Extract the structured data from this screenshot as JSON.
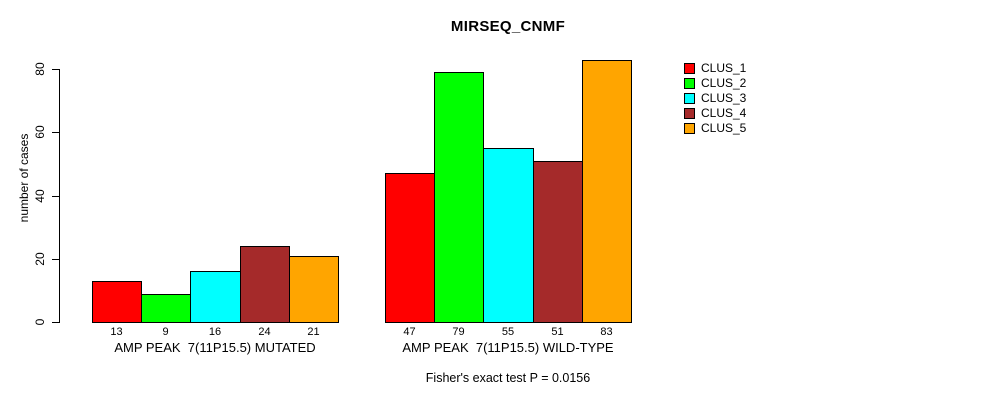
{
  "chart_data": {
    "type": "bar",
    "title": "MIRSEQ_CNMF",
    "ylabel": "number of cases",
    "xlabel": "",
    "ylim": [
      0,
      83
    ],
    "yticks": [
      0,
      20,
      40,
      60,
      80
    ],
    "grid": false,
    "legend_position": "right",
    "bar_value_labels": true,
    "categories": [
      "AMP PEAK  7(11P15.5) MUTATED",
      "AMP PEAK  7(11P15.5) WILD-TYPE"
    ],
    "series": [
      {
        "name": "CLUS_1",
        "color": "#FF0000",
        "values": [
          13,
          47
        ]
      },
      {
        "name": "CLUS_2",
        "color": "#00FF00",
        "values": [
          9,
          79
        ]
      },
      {
        "name": "CLUS_3",
        "color": "#00FFFF",
        "values": [
          16,
          55
        ]
      },
      {
        "name": "CLUS_4",
        "color": "#A52A2A",
        "values": [
          24,
          51
        ]
      },
      {
        "name": "CLUS_5",
        "color": "#FFA500",
        "values": [
          21,
          83
        ]
      }
    ],
    "annotation": "Fisher's exact test P = 0.0156"
  }
}
